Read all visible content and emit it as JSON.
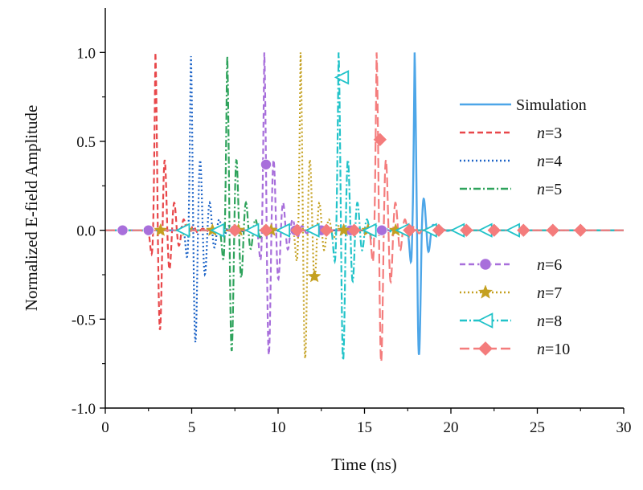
{
  "chart_data": {
    "type": "line",
    "title": "",
    "xlabel": "Time (ns)",
    "ylabel": "Normalized E-field Amplitude",
    "xlim": [
      0,
      30
    ],
    "ylim": [
      -1.0,
      1.25
    ],
    "x_ticks": [
      0,
      5,
      10,
      15,
      20,
      25,
      30
    ],
    "x_tick_labels": [
      "0",
      "5",
      "10",
      "15",
      "20",
      "25",
      "30"
    ],
    "y_ticks": [
      -1.0,
      -0.5,
      0.0,
      0.5,
      1.0
    ],
    "y_tick_labels": [
      "-1.0",
      "-0.5",
      "0.0",
      "0.5",
      "1.0"
    ],
    "grid": false,
    "legend_position": "right",
    "legend_groups": [
      [
        {
          "series": 0,
          "label": "Simulation"
        },
        {
          "series": 1,
          "label_italic": "n",
          "label_rest": "=3"
        },
        {
          "series": 2,
          "label_italic": "n",
          "label_rest": "=4"
        },
        {
          "series": 3,
          "label_italic": "n",
          "label_rest": "=5"
        }
      ],
      [
        {
          "series": 4,
          "label_italic": "n",
          "label_rest": "=6"
        },
        {
          "series": 5,
          "label_italic": "n",
          "label_rest": "=7"
        },
        {
          "series": 6,
          "label_italic": "n",
          "label_rest": "=8"
        },
        {
          "series": 7,
          "label_italic": "n",
          "label_rest": "=10"
        }
      ]
    ],
    "series": [
      {
        "name": "Simulation",
        "color": "#4DA6E8",
        "dash": "solid",
        "marker": "none",
        "pulse_center": 17.9,
        "peak": 1.0,
        "trough": -0.7,
        "marker_points": []
      },
      {
        "name": "n=3",
        "color": "#E8474A",
        "dash": "dash",
        "marker": "none",
        "pulse_center": 2.9,
        "peak": 1.0,
        "trough": -0.56,
        "marker_points": []
      },
      {
        "name": "n=4",
        "color": "#1C63C7",
        "dash": "dot",
        "marker": "none",
        "pulse_center": 4.95,
        "peak": 1.0,
        "trough": -0.63,
        "marker_points": []
      },
      {
        "name": "n=5",
        "color": "#2FA35C",
        "dash": "dashdot",
        "marker": "none",
        "pulse_center": 7.05,
        "peak": 1.0,
        "trough": -0.68,
        "marker_points": []
      },
      {
        "name": "n=6",
        "color": "#A86FDB",
        "dash": "dash",
        "marker": "circle",
        "pulse_center": 9.2,
        "peak": 1.0,
        "trough": -0.7,
        "marker_points": [
          [
            1.0,
            0.0
          ],
          [
            2.5,
            0.0
          ],
          [
            7.5,
            0.0
          ],
          [
            9.3,
            0.37
          ],
          [
            11.0,
            0.0
          ],
          [
            12.5,
            0.0
          ],
          [
            14.2,
            0.0
          ],
          [
            16.0,
            0.0
          ],
          [
            17.5,
            0.0
          ]
        ]
      },
      {
        "name": "n=7",
        "color": "#C4A020",
        "dash": "dot",
        "marker": "star",
        "pulse_center": 11.3,
        "peak": 1.0,
        "trough": -0.72,
        "marker_points": [
          [
            3.2,
            0.0
          ],
          [
            4.7,
            0.0
          ],
          [
            6.2,
            0.0
          ],
          [
            7.7,
            0.0
          ],
          [
            9.6,
            0.0
          ],
          [
            12.1,
            -0.26
          ],
          [
            13.8,
            0.0
          ],
          [
            15.2,
            0.0
          ],
          [
            16.8,
            0.0
          ]
        ]
      },
      {
        "name": "n=8",
        "color": "#22C3C9",
        "dash": "dashdot",
        "marker": "triangle-left",
        "pulse_center": 13.5,
        "peak": 1.0,
        "trough": -0.73,
        "marker_points": [
          [
            4.5,
            0.0
          ],
          [
            6.5,
            0.0
          ],
          [
            8.5,
            0.0
          ],
          [
            10.3,
            0.0
          ],
          [
            12.0,
            0.0
          ],
          [
            13.7,
            0.86
          ],
          [
            15.3,
            0.0
          ],
          [
            17.2,
            0.0
          ],
          [
            18.8,
            0.0
          ],
          [
            20.4,
            0.0
          ],
          [
            22.0,
            0.0
          ],
          [
            23.6,
            0.0
          ]
        ]
      },
      {
        "name": "n=10",
        "color": "#F47C7C",
        "dash": "longdash",
        "marker": "diamond",
        "pulse_center": 15.7,
        "peak": 1.0,
        "trough": -0.74,
        "marker_points": [
          [
            7.5,
            0.0
          ],
          [
            9.3,
            0.0
          ],
          [
            11.1,
            0.0
          ],
          [
            12.8,
            0.0
          ],
          [
            14.4,
            0.0
          ],
          [
            15.9,
            0.51
          ],
          [
            17.6,
            0.0
          ],
          [
            19.3,
            0.0
          ],
          [
            20.9,
            0.0
          ],
          [
            22.5,
            0.0
          ],
          [
            24.2,
            0.0
          ],
          [
            25.9,
            0.0
          ],
          [
            27.5,
            0.0
          ]
        ]
      }
    ]
  }
}
